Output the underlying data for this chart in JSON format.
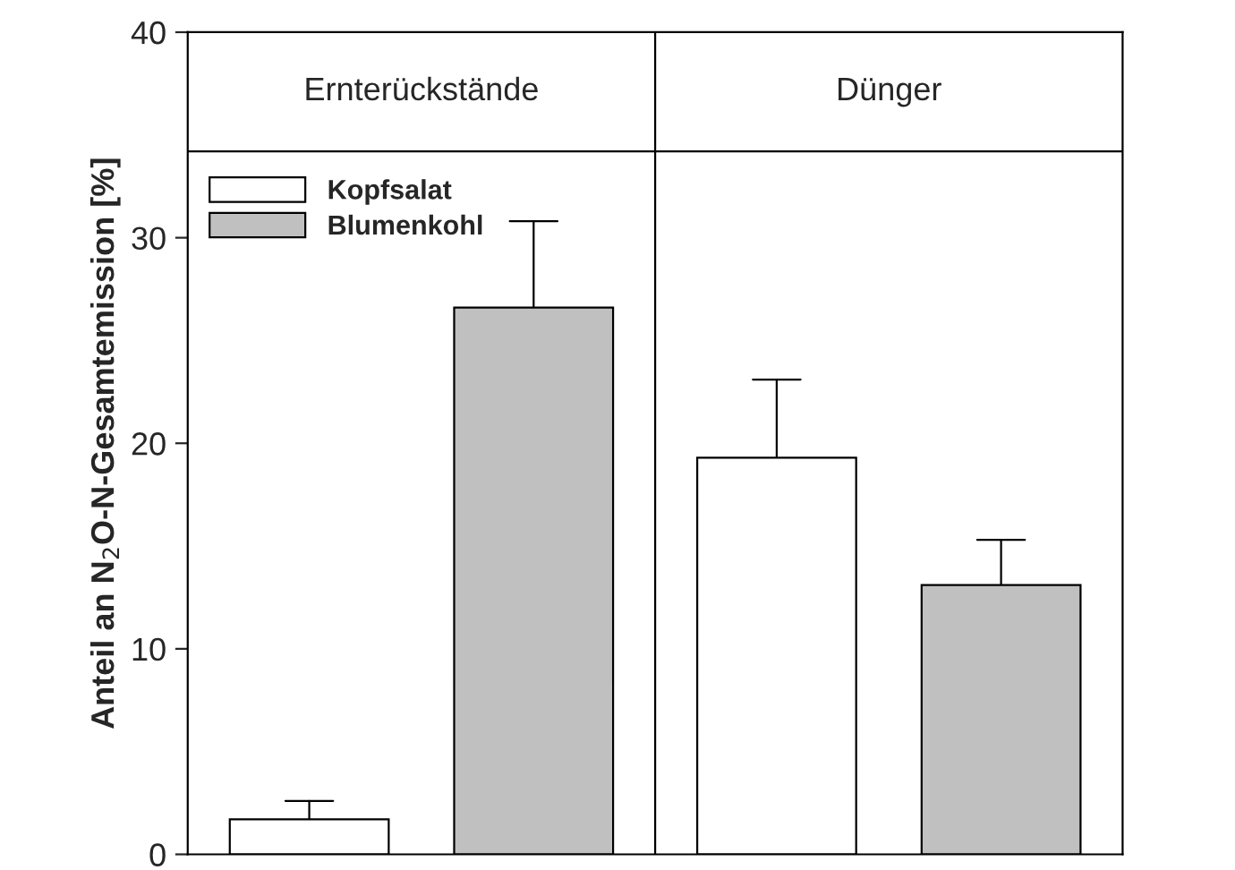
{
  "chart_data": {
    "type": "bar",
    "ylabel": "Anteil an N$_{2}$O-N-Gesamtemission [%]",
    "categories": [
      "Ernterückstände",
      "Dünger"
    ],
    "series": [
      {
        "name": "Kopfsalat",
        "color": "#ffffff",
        "values": [
          1.7,
          19.3
        ],
        "errors": [
          [
            1.7,
            2.6
          ],
          [
            19.3,
            23.1
          ]
        ]
      },
      {
        "name": "Blumenkohl",
        "color": "#c0c0c0",
        "values": [
          26.6,
          13.1
        ],
        "errors": [
          [
            26.6,
            30.8
          ],
          [
            13.1,
            15.3
          ]
        ]
      }
    ],
    "ylim": [
      0,
      40
    ],
    "yticks": [
      0,
      10,
      20,
      30,
      40
    ],
    "ref_lines": [
      {
        "axis": "y",
        "value": 34.2
      }
    ],
    "legend": "top left",
    "grid": false
  }
}
